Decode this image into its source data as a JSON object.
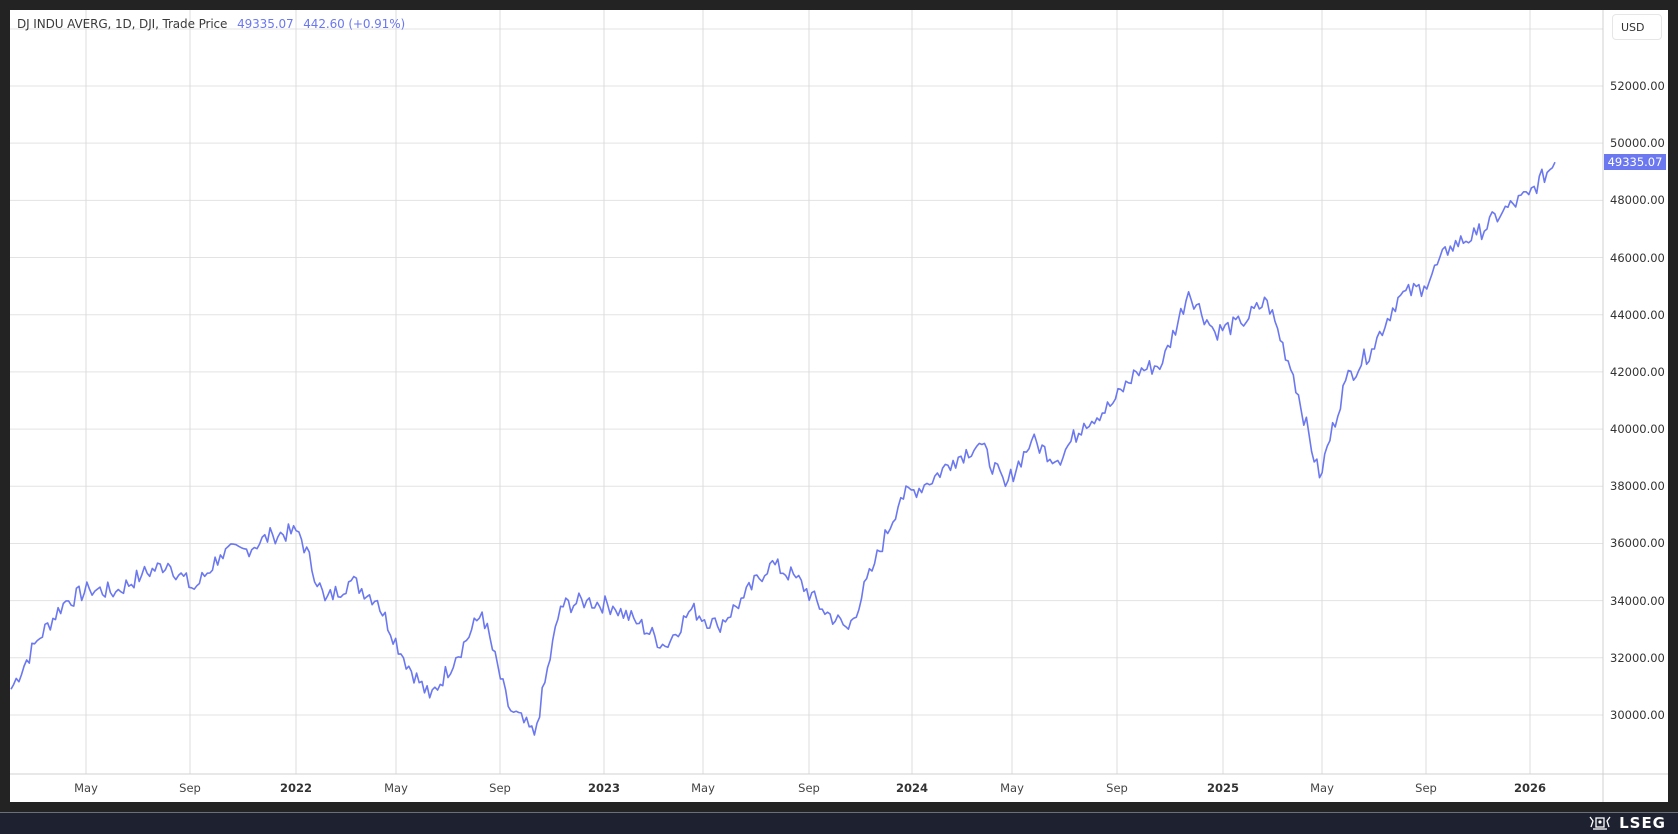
{
  "legend": {
    "symbol": "DJ INDU AVERG, 1D, DJI, Trade Price",
    "last_price": "49335.07",
    "change": "442.60 (+0.91%)"
  },
  "currency": "USD",
  "price_tag": "49335.07",
  "colors": {
    "line": "#6b78f0",
    "accent": "#6b78f0",
    "grid": "#e0e0e0",
    "frame": "#232323",
    "footer": "#1e2230"
  },
  "footer": {
    "brand": "LSEG"
  },
  "y_ticks": [
    "52000.00",
    "50000.00",
    "48000.00",
    "46000.00",
    "44000.00",
    "42000.00",
    "40000.00",
    "38000.00",
    "36000.00",
    "34000.00",
    "32000.00",
    "30000.00"
  ],
  "x_ticks": [
    {
      "label": "May",
      "year": false
    },
    {
      "label": "Sep",
      "year": false
    },
    {
      "label": "2022",
      "year": true
    },
    {
      "label": "May",
      "year": false
    },
    {
      "label": "Sep",
      "year": false
    },
    {
      "label": "2023",
      "year": true
    },
    {
      "label": "May",
      "year": false
    },
    {
      "label": "Sep",
      "year": false
    },
    {
      "label": "2024",
      "year": true
    },
    {
      "label": "May",
      "year": false
    },
    {
      "label": "Sep",
      "year": false
    },
    {
      "label": "2025",
      "year": true
    },
    {
      "label": "May",
      "year": false
    },
    {
      "label": "Sep",
      "year": false
    },
    {
      "label": "2026",
      "year": true
    }
  ],
  "chart_data": {
    "type": "line",
    "title": "DJ INDU AVERG, 1D, DJI, Trade Price",
    "xlabel": "",
    "ylabel": "USD",
    "ylim": [
      28000,
      53500
    ],
    "grid": true,
    "legend_position": "top-left",
    "x_tick_labels": [
      "May",
      "Sep",
      "2022",
      "May",
      "Sep",
      "2023",
      "May",
      "Sep",
      "2024",
      "May",
      "Sep",
      "2025",
      "May",
      "Sep",
      "2026"
    ],
    "y_tick_labels": [
      "30000.00",
      "32000.00",
      "34000.00",
      "36000.00",
      "38000.00",
      "40000.00",
      "42000.00",
      "44000.00",
      "46000.00",
      "48000.00",
      "50000.00",
      "52000.00"
    ],
    "series": [
      {
        "name": "DJI Trade Price",
        "x": [
          "2021-02",
          "2021-03",
          "2021-04",
          "2021-05",
          "2021-06",
          "2021-07",
          "2021-08",
          "2021-09",
          "2021-10",
          "2021-11",
          "2021-12",
          "2022-01",
          "2022-02",
          "2022-03",
          "2022-04",
          "2022-05",
          "2022-06",
          "2022-07",
          "2022-08",
          "2022-09",
          "2022-10",
          "2022-11",
          "2022-12",
          "2023-01",
          "2023-02",
          "2023-03",
          "2023-04",
          "2023-05",
          "2023-06",
          "2023-07",
          "2023-08",
          "2023-09",
          "2023-10",
          "2023-11",
          "2023-12",
          "2024-01",
          "2024-02",
          "2024-03",
          "2024-04",
          "2024-05",
          "2024-06",
          "2024-07",
          "2024-08",
          "2024-09",
          "2024-10",
          "2024-11",
          "2024-12",
          "2025-01",
          "2025-02",
          "2025-03",
          "2025-04",
          "2025-05",
          "2025-06",
          "2025-07",
          "2025-08",
          "2025-09",
          "2025-10",
          "2025-11",
          "2025-12",
          "2026-01"
        ],
        "values": [
          30900,
          32600,
          33900,
          34400,
          34300,
          34900,
          35300,
          34400,
          35600,
          35800,
          36300,
          36400,
          34000,
          34700,
          34000,
          32000,
          30600,
          32000,
          33600,
          30300,
          29300,
          33800,
          34000,
          33800,
          33200,
          32400,
          33700,
          33100,
          34100,
          35300,
          34800,
          33700,
          33000,
          35300,
          37600,
          38100,
          38900,
          39500,
          38000,
          39600,
          38900,
          40200,
          40800,
          42000,
          42300,
          44800,
          43400,
          43700,
          44500,
          41900,
          38300,
          41700,
          42800,
          44600,
          45000,
          46400,
          46800,
          47600,
          48200,
          49335.07
        ]
      }
    ],
    "last_value": 49335.07,
    "change": 442.6,
    "change_pct": 0.91
  }
}
